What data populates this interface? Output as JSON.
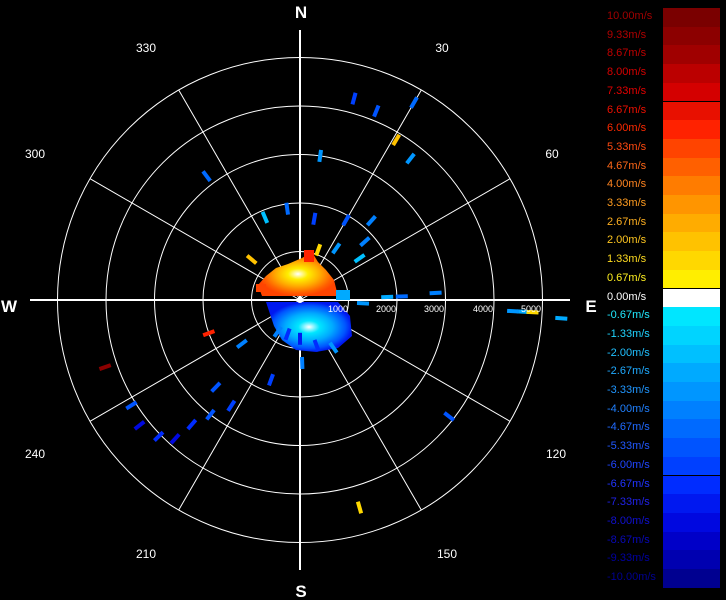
{
  "chart_data": {
    "type": "scatter",
    "title": "",
    "compass": {
      "north": "N",
      "south": "S",
      "east": "E",
      "west": "W"
    },
    "azimuth_labels": [
      "30",
      "60",
      "120",
      "150",
      "210",
      "240",
      "300",
      "330"
    ],
    "range_labels": [
      "1000",
      "2000",
      "3000",
      "4000",
      "5000"
    ],
    "range_max": 5000,
    "grid": true,
    "legend": "right",
    "colorbar": [
      {
        "label": "10.00m/s",
        "color": "#7a0000",
        "text_color": "#a00000"
      },
      {
        "label": "9.33m/s",
        "color": "#8c0000",
        "text_color": "#b00000"
      },
      {
        "label": "8.67m/s",
        "color": "#a00000",
        "text_color": "#c00000"
      },
      {
        "label": "8.00m/s",
        "color": "#bb0000",
        "text_color": "#d50000"
      },
      {
        "label": "7.33m/s",
        "color": "#d40000",
        "text_color": "#e40000"
      },
      {
        "label": "6.67m/s",
        "color": "#e81000",
        "text_color": "#f01000"
      },
      {
        "label": "6.00m/s",
        "color": "#ff2200",
        "text_color": "#ff2a00"
      },
      {
        "label": "5.33m/s",
        "color": "#ff4400",
        "text_color": "#ff4a10"
      },
      {
        "label": "4.67m/s",
        "color": "#ff6000",
        "text_color": "#ff6818"
      },
      {
        "label": "4.00m/s",
        "color": "#ff7c00",
        "text_color": "#ff8420"
      },
      {
        "label": "3.33m/s",
        "color": "#ff9500",
        "text_color": "#ff9c20"
      },
      {
        "label": "2.67m/s",
        "color": "#ffac00",
        "text_color": "#ffb020"
      },
      {
        "label": "2.00m/s",
        "color": "#ffc200",
        "text_color": "#ffc620"
      },
      {
        "label": "1.33m/s",
        "color": "#ffd800",
        "text_color": "#ffdc20"
      },
      {
        "label": "0.67m/s",
        "color": "#ffee00",
        "text_color": "#fff020"
      },
      {
        "label": "0.00m/s",
        "color": "#ffffff",
        "text_color": "#ffffff"
      },
      {
        "label": "-0.67m/s",
        "color": "#00e6ff",
        "text_color": "#20e8ff"
      },
      {
        "label": "-1.33m/s",
        "color": "#00d4ff",
        "text_color": "#20d4ff"
      },
      {
        "label": "-2.00m/s",
        "color": "#00c0ff",
        "text_color": "#20c0ff"
      },
      {
        "label": "-2.67m/s",
        "color": "#00aaff",
        "text_color": "#20aaff"
      },
      {
        "label": "-3.33m/s",
        "color": "#0096ff",
        "text_color": "#2096ff"
      },
      {
        "label": "-4.00m/s",
        "color": "#0080ff",
        "text_color": "#2080ff"
      },
      {
        "label": "-4.67m/s",
        "color": "#006aff",
        "text_color": "#206aff"
      },
      {
        "label": "-5.33m/s",
        "color": "#0054ff",
        "text_color": "#2058ff"
      },
      {
        "label": "-6.00m/s",
        "color": "#0040ff",
        "text_color": "#2046ff"
      },
      {
        "label": "-6.67m/s",
        "color": "#002cff",
        "text_color": "#2034ff"
      },
      {
        "label": "-7.33m/s",
        "color": "#0018f0",
        "text_color": "#2022e8"
      },
      {
        "label": "-8.00m/s",
        "color": "#0008e0",
        "text_color": "#1010d0"
      },
      {
        "label": "-8.67m/s",
        "color": "#0000c8",
        "text_color": "#0808b8"
      },
      {
        "label": "-9.33m/s",
        "color": "#0000b0",
        "text_color": "#0000a0"
      },
      {
        "label": "-10.00m/s",
        "color": "#000090",
        "text_color": "#000090"
      }
    ],
    "points": [
      {
        "az": 8,
        "r": 3000,
        "v": -3.3
      },
      {
        "az": 15,
        "r": 4300,
        "v": -6.0
      },
      {
        "az": 22,
        "r": 4200,
        "v": -5.3
      },
      {
        "az": 30,
        "r": 4700,
        "v": -4.7
      },
      {
        "az": 31,
        "r": 3850,
        "v": 2.0
      },
      {
        "az": 38,
        "r": 3700,
        "v": -3.3
      },
      {
        "az": 42,
        "r": 2200,
        "v": -4.0
      },
      {
        "az": 30,
        "r": 1900,
        "v": -5.3
      },
      {
        "az": 48,
        "r": 1800,
        "v": -4.0
      },
      {
        "az": 35,
        "r": 1300,
        "v": -3.3
      },
      {
        "az": 20,
        "r": 1100,
        "v": 1.3
      },
      {
        "az": 10,
        "r": 1700,
        "v": -6.0
      },
      {
        "az": 352,
        "r": 1900,
        "v": -4.7
      },
      {
        "az": 337,
        "r": 1850,
        "v": -2.0
      },
      {
        "az": 323,
        "r": 3200,
        "v": -4.7
      },
      {
        "az": 310,
        "r": 1300,
        "v": 2.0
      },
      {
        "az": 55,
        "r": 1500,
        "v": -2.0
      },
      {
        "az": 88,
        "r": 1800,
        "v": -2.7
      },
      {
        "az": 88,
        "r": 2100,
        "v": -4.7
      },
      {
        "az": 93,
        "r": 1300,
        "v": -3.3
      },
      {
        "az": 87,
        "r": 2800,
        "v": -4.0
      },
      {
        "az": 93,
        "r": 4600,
        "v": -2.7
      },
      {
        "az": 93,
        "r": 4800,
        "v": 1.3
      },
      {
        "az": 93,
        "r": 4400,
        "v": -3.3
      },
      {
        "az": 94,
        "r": 5400,
        "v": -2.7
      },
      {
        "az": 128,
        "r": 3900,
        "v": -5.3
      },
      {
        "az": 164,
        "r": 4450,
        "v": 1.3
      },
      {
        "az": 145,
        "r": 1200,
        "v": -3.3
      },
      {
        "az": 160,
        "r": 1000,
        "v": -6.7
      },
      {
        "az": 180,
        "r": 800,
        "v": -7.3
      },
      {
        "az": 200,
        "r": 750,
        "v": -6.7
      },
      {
        "az": 178,
        "r": 1300,
        "v": -4.0
      },
      {
        "az": 200,
        "r": 1750,
        "v": -6.0
      },
      {
        "az": 213,
        "r": 2600,
        "v": -6.0
      },
      {
        "az": 218,
        "r": 3000,
        "v": -5.3
      },
      {
        "az": 221,
        "r": 3400,
        "v": -6.7
      },
      {
        "az": 222,
        "r": 3850,
        "v": -8.0
      },
      {
        "az": 226,
        "r": 4050,
        "v": -6.7
      },
      {
        "az": 232,
        "r": 4200,
        "v": -8.0
      },
      {
        "az": 238,
        "r": 4100,
        "v": -5.3
      },
      {
        "az": 251,
        "r": 4250,
        "v": 9.3
      },
      {
        "az": 250,
        "r": 2000,
        "v": 6.0
      },
      {
        "az": 224,
        "r": 2500,
        "v": -5.3
      },
      {
        "az": 215,
        "r": 800,
        "v": -4.0
      },
      {
        "az": 233,
        "r": 1500,
        "v": -4.0
      }
    ]
  }
}
